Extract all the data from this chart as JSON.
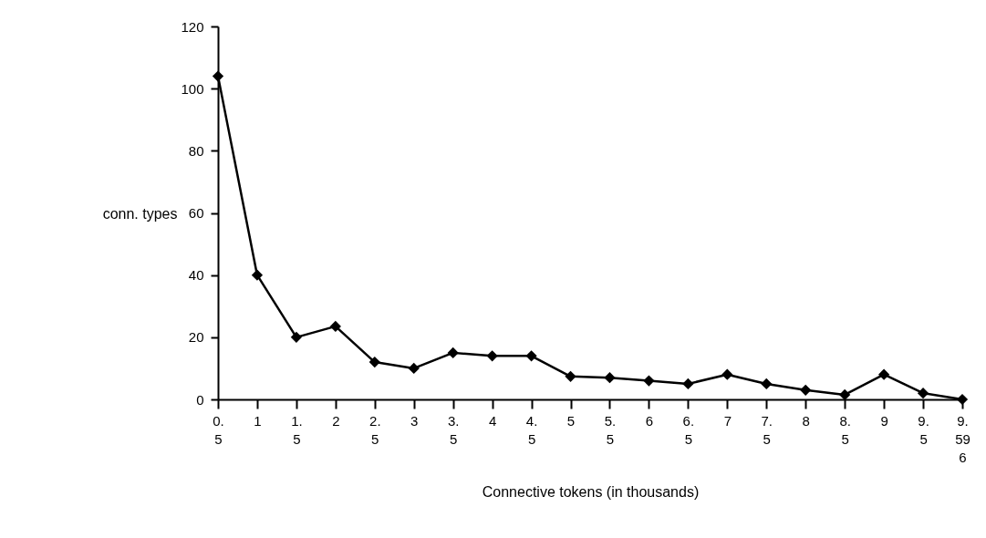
{
  "chart_data": {
    "type": "line",
    "xlabel": "Connective tokens (in thousands)",
    "ylabel": "conn. types",
    "categories": [
      "0.5",
      "1",
      "1.5",
      "2",
      "2.5",
      "3",
      "3.5",
      "4",
      "4.5",
      "5",
      "5.5",
      "6",
      "6.5",
      "7",
      "7.5",
      "8",
      "8.5",
      "9",
      "9.5",
      "9.596"
    ],
    "series": [
      {
        "color": "#000000",
        "values": [
          104,
          40,
          20,
          23.5,
          12,
          10,
          15,
          14,
          14,
          7.4,
          7,
          6,
          5,
          8,
          5,
          3,
          1.5,
          8,
          2,
          0
        ]
      }
    ],
    "ylim": [
      0,
      120
    ],
    "yticks": [
      0,
      20,
      40,
      60,
      80,
      100,
      120
    ],
    "marker": "diamond",
    "line_style": "solid",
    "grid": false,
    "legend": false
  }
}
